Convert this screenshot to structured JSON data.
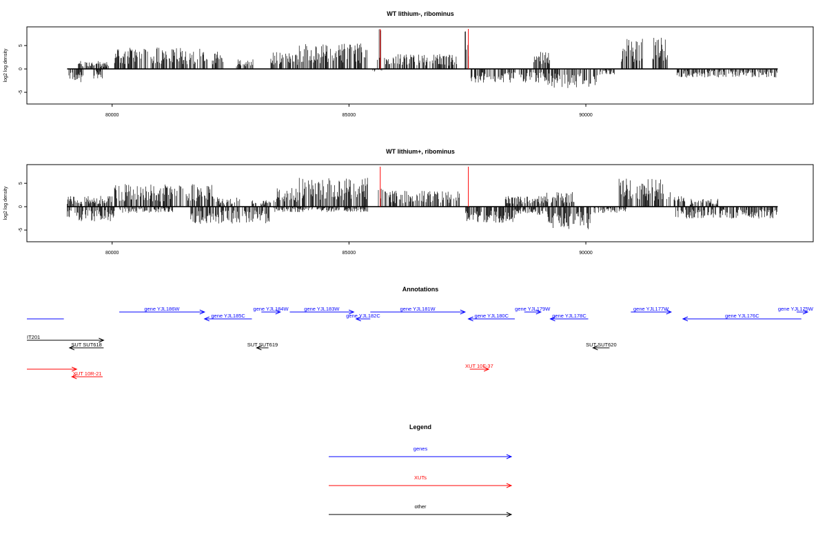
{
  "colors": {
    "gene": "#0000ff",
    "xut": "#ff0000",
    "other": "#000000",
    "marker": "#ff0000"
  },
  "chart_data": [
    {
      "type": "bar",
      "title": "WT lithium-, ribominus",
      "ylabel": "log2 log density",
      "xlim": [
        78200,
        94800
      ],
      "ylim": [
        -7.5,
        9
      ],
      "xticks": [
        80000,
        85000,
        90000
      ],
      "yticks": [
        5,
        0,
        -5
      ],
      "markers": [
        85660,
        87520
      ],
      "grid": false,
      "profile": {
        "x_start": 79050,
        "x_end": 94050,
        "positive_segments": [
          [
            79250,
            79950,
            1.5
          ],
          [
            80050,
            82350,
            4.0
          ],
          [
            82600,
            83000,
            1.8
          ],
          [
            83350,
            83950,
            3.2
          ],
          [
            83950,
            85400,
            4.8
          ],
          [
            85600,
            85700,
            7.5
          ],
          [
            85750,
            87300,
            2.8
          ],
          [
            87450,
            87550,
            7.5
          ],
          [
            88900,
            89300,
            3.2
          ],
          [
            90750,
            91200,
            5.8
          ],
          [
            91400,
            91750,
            5.8
          ]
        ],
        "negative_segments": [
          [
            79050,
            79400,
            -2.5
          ],
          [
            79600,
            79800,
            -1.8
          ],
          [
            85500,
            85700,
            -0.6
          ],
          [
            87550,
            89200,
            -2.6
          ],
          [
            89200,
            90250,
            -3.6
          ],
          [
            90300,
            90650,
            -1.2
          ],
          [
            91900,
            94050,
            -1.6
          ]
        ]
      }
    },
    {
      "type": "bar",
      "title": "WT lithium+, ribominus",
      "ylabel": "log2 log density",
      "xlim": [
        78200,
        94800
      ],
      "ylim": [
        -7.5,
        9
      ],
      "xticks": [
        80000,
        85000,
        90000
      ],
      "yticks": [
        5,
        0,
        -5
      ],
      "markers": [
        85660,
        87520
      ],
      "grid": false,
      "profile": {
        "x_start": 79050,
        "x_end": 94050,
        "positive_segments": [
          [
            79050,
            80000,
            2.0
          ],
          [
            80050,
            82150,
            4.2
          ],
          [
            82200,
            82700,
            1.8
          ],
          [
            82950,
            83350,
            1.5
          ],
          [
            83400,
            83950,
            3.5
          ],
          [
            83950,
            85400,
            5.5
          ],
          [
            85620,
            85720,
            4.0
          ],
          [
            85760,
            87350,
            3.0
          ],
          [
            88300,
            89150,
            2.0
          ],
          [
            89150,
            89750,
            2.8
          ],
          [
            90700,
            91800,
            5.2
          ],
          [
            91850,
            92100,
            2.0
          ],
          [
            92200,
            92800,
            1.5
          ]
        ],
        "negative_segments": [
          [
            79050,
            80050,
            -2.8
          ],
          [
            80150,
            81300,
            -1.2
          ],
          [
            81600,
            83350,
            -3.2
          ],
          [
            83400,
            84800,
            -1.0
          ],
          [
            84900,
            85400,
            -1.0
          ],
          [
            87450,
            88500,
            -3.0
          ],
          [
            88500,
            89200,
            -1.5
          ],
          [
            89200,
            90100,
            -4.2
          ],
          [
            90150,
            90850,
            -1.2
          ],
          [
            91900,
            94050,
            -2.2
          ]
        ]
      }
    }
  ],
  "annotations": {
    "title": "Annotations",
    "features": [
      {
        "label": "gene YJL186W",
        "type": "gene",
        "row": 0,
        "from": 80150,
        "to": 81950,
        "dir": "right"
      },
      {
        "label": "gene YJL185C",
        "type": "gene",
        "row": 1,
        "from": 81950,
        "to": 82950,
        "dir": "left"
      },
      {
        "label": "gene YJL184W",
        "type": "gene",
        "row": 0,
        "from": 83150,
        "to": 83550,
        "dir": "right"
      },
      {
        "label": "gene YJL183W",
        "type": "gene",
        "row": 0,
        "from": 83750,
        "to": 85100,
        "dir": "right"
      },
      {
        "label": "gene YJL182C",
        "type": "gene",
        "row": 1,
        "from": 85150,
        "to": 85450,
        "dir": "left"
      },
      {
        "label": "gene YJL181W",
        "type": "gene",
        "row": 0,
        "from": 85450,
        "to": 87450,
        "dir": "right"
      },
      {
        "label": "gene YJL180C",
        "type": "gene",
        "row": 1,
        "from": 87520,
        "to": 88500,
        "dir": "left"
      },
      {
        "label": "gene YJL179W",
        "type": "gene",
        "row": 0,
        "from": 88700,
        "to": 89050,
        "dir": "right"
      },
      {
        "label": "gene YJL178C",
        "type": "gene",
        "row": 1,
        "from": 89250,
        "to": 90050,
        "dir": "left"
      },
      {
        "label": "gene YJL177W",
        "type": "gene",
        "row": 0,
        "from": 90950,
        "to": 91800,
        "dir": "right"
      },
      {
        "label": "gene YJL176C",
        "type": "gene",
        "row": 1,
        "from": 92050,
        "to": 94550,
        "dir": "left"
      },
      {
        "label": "gene YJL175W",
        "type": "gene",
        "row": 0,
        "from": 94450,
        "to": 94700,
        "dir": "right"
      },
      {
        "label": "",
        "type": "gene",
        "row": 1,
        "from": 78200,
        "to": 78980,
        "dir": "none"
      },
      {
        "label": "IT201",
        "type": "other",
        "row": 3,
        "from": 78200,
        "to": 79820,
        "dir": "right"
      },
      {
        "label": "SUT SUT618",
        "type": "other",
        "row": 4,
        "from": 79100,
        "to": 79820,
        "dir": "left"
      },
      {
        "label": "SUT SUT619",
        "type": "other",
        "row": 4,
        "from": 83050,
        "to": 83300,
        "dir": "left"
      },
      {
        "label": "SUT SUT620",
        "type": "other",
        "row": 4,
        "from": 90150,
        "to": 90500,
        "dir": "left"
      },
      {
        "label": "",
        "type": "xut",
        "row": 6,
        "from": 78200,
        "to": 79250,
        "dir": "right"
      },
      {
        "label": "XUT 10R-21",
        "type": "xut",
        "row": 7,
        "from": 79150,
        "to": 79800,
        "dir": "left"
      },
      {
        "label": "XUT 10F-37",
        "type": "xut",
        "row": 6,
        "from": 87550,
        "to": 87950,
        "dir": "right"
      }
    ]
  },
  "legend": {
    "title": "Legend",
    "items": [
      {
        "label": "genes",
        "type": "gene"
      },
      {
        "label": "XUTs",
        "type": "xut"
      },
      {
        "label": "other",
        "type": "other"
      }
    ]
  }
}
